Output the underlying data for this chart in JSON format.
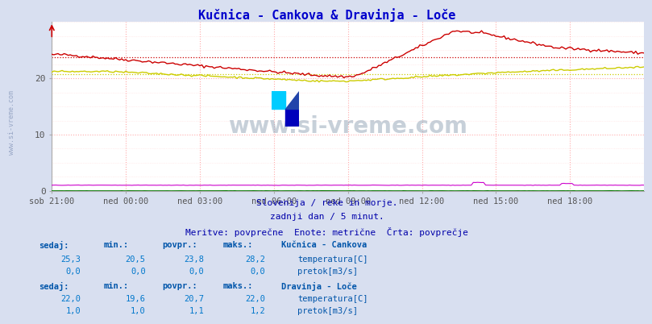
{
  "title": "Kučnica - Cankova & Dravinja - Loče",
  "title_color": "#0000cc",
  "bg_color": "#d8dff0",
  "plot_bg_color": "#ffffff",
  "grid_color_major": "#ffaaaa",
  "grid_color_minor": "#ffdddd",
  "x_tick_labels": [
    "sob 21:00",
    "ned 00:00",
    "ned 03:00",
    "ned 06:00",
    "ned 09:00",
    "ned 12:00",
    "ned 15:00",
    "ned 18:00"
  ],
  "x_tick_positions": [
    0,
    36,
    72,
    108,
    144,
    180,
    216,
    252
  ],
  "n_points": 289,
  "ylim": [
    0,
    30
  ],
  "yticks": [
    0,
    10,
    20
  ],
  "watermark": "www.si-vreme.com",
  "subtitle1": "Slovenija / reke in morje.",
  "subtitle2": "zadnji dan / 5 minut.",
  "subtitle3": "Meritve: povprečne  Enote: metrične  Črta: povprečje",
  "subtitle_color": "#0000aa",
  "kucnica_temp_color": "#cc0000",
  "kucnica_temp_avg": 23.8,
  "kucnica_pretok_color": "#007700",
  "dravinja_temp_color": "#cccc00",
  "dravinja_temp_avg": 20.7,
  "dravinja_pretok_color": "#cc00cc",
  "table_header_color": "#0055aa",
  "table_value_color": "#0077cc",
  "station1_name": "Kučnica - Cankova",
  "station1_sedaj": [
    25.3,
    0.0
  ],
  "station1_min": [
    20.5,
    0.0
  ],
  "station1_povpr": [
    23.8,
    0.0
  ],
  "station1_maks": [
    28.2,
    0.0
  ],
  "station2_name": "Dravinja - Loče",
  "station2_sedaj": [
    22.0,
    1.0
  ],
  "station2_min": [
    19.6,
    1.0
  ],
  "station2_povpr": [
    20.7,
    1.1
  ],
  "station2_maks": [
    22.0,
    1.2
  ]
}
